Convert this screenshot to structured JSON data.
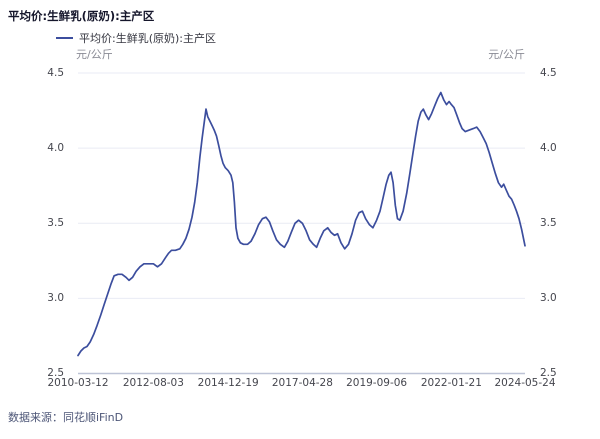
{
  "page": {
    "background": "#ffffff"
  },
  "chart_data": {
    "type": "line",
    "title": "平均价:生鲜乳(原奶):主产区",
    "legend": "平均价:生鲜乳(原奶):主产区",
    "legend_position": "top-left",
    "unit_left": "元/公斤",
    "unit_right": "元/公斤",
    "ylabel": "元/公斤",
    "xlabel": "",
    "source": "数据来源：同花顺iFinD",
    "grid": "horizontal-only",
    "ylim": [
      2.5,
      4.5
    ],
    "yticks": [
      2.5,
      3.0,
      3.5,
      4.0,
      4.5
    ],
    "ytick_labels": [
      "2.5",
      "3.0",
      "3.5",
      "4.0",
      "4.5"
    ],
    "xtick_labels": [
      "2010-03-12",
      "2012-08-03",
      "2014-12-19",
      "2017-04-28",
      "2019-09-06",
      "2022-01-21",
      "2024-05-24"
    ],
    "colors": {
      "line": "#3C4E9E",
      "grid": "#E9EBF4",
      "axis": "#BDC3D6",
      "title": "#15162B",
      "tick_label": "#45464E",
      "unit_label": "#8A8B95",
      "source": "#4D5677"
    },
    "series": [
      {
        "name": "平均价:生鲜乳(原奶):主产区",
        "points": [
          [
            "2010-03-12",
            2.62
          ],
          [
            "2010-04-15",
            2.65
          ],
          [
            "2010-05-20",
            2.67
          ],
          [
            "2010-06-25",
            2.68
          ],
          [
            "2010-08-01",
            2.71
          ],
          [
            "2010-09-10",
            2.76
          ],
          [
            "2010-10-20",
            2.82
          ],
          [
            "2010-12-01",
            2.89
          ],
          [
            "2011-01-10",
            2.96
          ],
          [
            "2011-02-20",
            3.03
          ],
          [
            "2011-04-01",
            3.1
          ],
          [
            "2011-05-05",
            3.15
          ],
          [
            "2011-06-20",
            3.16
          ],
          [
            "2011-08-05",
            3.16
          ],
          [
            "2011-09-20",
            3.14
          ],
          [
            "2011-10-25",
            3.12
          ],
          [
            "2011-12-05",
            3.14
          ],
          [
            "2012-01-15",
            3.18
          ],
          [
            "2012-03-01",
            3.21
          ],
          [
            "2012-04-15",
            3.23
          ],
          [
            "2012-06-10",
            3.23
          ],
          [
            "2012-08-03",
            3.23
          ],
          [
            "2012-09-20",
            3.21
          ],
          [
            "2012-11-05",
            3.23
          ],
          [
            "2012-12-20",
            3.27
          ],
          [
            "2013-01-25",
            3.3
          ],
          [
            "2013-03-01",
            3.32
          ],
          [
            "2013-04-15",
            3.32
          ],
          [
            "2013-06-05",
            3.33
          ],
          [
            "2013-07-10",
            3.36
          ],
          [
            "2013-08-15",
            3.4
          ],
          [
            "2013-09-20",
            3.46
          ],
          [
            "2013-10-25",
            3.54
          ],
          [
            "2013-11-25",
            3.64
          ],
          [
            "2013-12-25",
            3.77
          ],
          [
            "2014-01-25",
            3.94
          ],
          [
            "2014-02-20",
            4.07
          ],
          [
            "2014-03-15",
            4.17
          ],
          [
            "2014-04-05",
            4.26
          ],
          [
            "2014-04-25",
            4.21
          ],
          [
            "2014-05-20",
            4.18
          ],
          [
            "2014-06-15",
            4.15
          ],
          [
            "2014-07-10",
            4.12
          ],
          [
            "2014-08-05",
            4.08
          ],
          [
            "2014-08-30",
            4.02
          ],
          [
            "2014-09-25",
            3.95
          ],
          [
            "2014-10-20",
            3.9
          ],
          [
            "2014-11-15",
            3.87
          ],
          [
            "2014-12-19",
            3.85
          ],
          [
            "2015-01-20",
            3.82
          ],
          [
            "2015-02-10",
            3.77
          ],
          [
            "2015-03-01",
            3.64
          ],
          [
            "2015-03-20",
            3.47
          ],
          [
            "2015-04-10",
            3.4
          ],
          [
            "2015-05-10",
            3.37
          ],
          [
            "2015-06-15",
            3.36
          ],
          [
            "2015-08-01",
            3.36
          ],
          [
            "2015-09-10",
            3.38
          ],
          [
            "2015-10-25",
            3.43
          ],
          [
            "2015-12-05",
            3.49
          ],
          [
            "2016-01-20",
            3.53
          ],
          [
            "2016-03-01",
            3.54
          ],
          [
            "2016-04-10",
            3.51
          ],
          [
            "2016-05-20",
            3.45
          ],
          [
            "2016-07-01",
            3.39
          ],
          [
            "2016-08-15",
            3.36
          ],
          [
            "2016-10-01",
            3.34
          ],
          [
            "2016-11-10",
            3.38
          ],
          [
            "2016-12-20",
            3.44
          ],
          [
            "2017-02-01",
            3.5
          ],
          [
            "2017-03-15",
            3.52
          ],
          [
            "2017-04-28",
            3.5
          ],
          [
            "2017-06-10",
            3.45
          ],
          [
            "2017-07-20",
            3.39
          ],
          [
            "2017-09-01",
            3.36
          ],
          [
            "2017-10-10",
            3.34
          ],
          [
            "2017-11-20",
            3.4
          ],
          [
            "2018-01-01",
            3.45
          ],
          [
            "2018-02-15",
            3.47
          ],
          [
            "2018-03-25",
            3.44
          ],
          [
            "2018-05-05",
            3.42
          ],
          [
            "2018-06-10",
            3.43
          ],
          [
            "2018-07-20",
            3.37
          ],
          [
            "2018-09-01",
            3.33
          ],
          [
            "2018-10-15",
            3.36
          ],
          [
            "2018-11-25",
            3.43
          ],
          [
            "2019-01-05",
            3.52
          ],
          [
            "2019-02-15",
            3.57
          ],
          [
            "2019-03-25",
            3.58
          ],
          [
            "2019-05-01",
            3.53
          ],
          [
            "2019-06-15",
            3.49
          ],
          [
            "2019-07-25",
            3.47
          ],
          [
            "2019-09-06",
            3.52
          ],
          [
            "2019-10-15",
            3.58
          ],
          [
            "2019-11-20",
            3.67
          ],
          [
            "2019-12-25",
            3.76
          ],
          [
            "2020-01-25",
            3.82
          ],
          [
            "2020-02-20",
            3.84
          ],
          [
            "2020-03-15",
            3.77
          ],
          [
            "2020-04-10",
            3.62
          ],
          [
            "2020-05-05",
            3.53
          ],
          [
            "2020-06-01",
            3.52
          ],
          [
            "2020-07-10",
            3.58
          ],
          [
            "2020-08-20",
            3.7
          ],
          [
            "2020-09-25",
            3.83
          ],
          [
            "2020-10-30",
            3.96
          ],
          [
            "2020-12-01",
            4.08
          ],
          [
            "2021-01-01",
            4.18
          ],
          [
            "2021-02-01",
            4.24
          ],
          [
            "2021-03-01",
            4.26
          ],
          [
            "2021-04-01",
            4.22
          ],
          [
            "2021-05-01",
            4.19
          ],
          [
            "2021-06-05",
            4.23
          ],
          [
            "2021-07-10",
            4.28
          ],
          [
            "2021-08-15",
            4.33
          ],
          [
            "2021-09-20",
            4.37
          ],
          [
            "2021-10-25",
            4.32
          ],
          [
            "2021-11-25",
            4.29
          ],
          [
            "2021-12-25",
            4.31
          ],
          [
            "2022-01-21",
            4.29
          ],
          [
            "2022-02-20",
            4.27
          ],
          [
            "2022-03-25",
            4.22
          ],
          [
            "2022-04-25",
            4.17
          ],
          [
            "2022-05-25",
            4.13
          ],
          [
            "2022-07-01",
            4.11
          ],
          [
            "2022-08-15",
            4.12
          ],
          [
            "2022-10-01",
            4.13
          ],
          [
            "2022-11-10",
            4.14
          ],
          [
            "2022-12-20",
            4.11
          ],
          [
            "2023-01-25",
            4.07
          ],
          [
            "2023-03-01",
            4.03
          ],
          [
            "2023-04-05",
            3.97
          ],
          [
            "2023-05-10",
            3.9
          ],
          [
            "2023-06-15",
            3.83
          ],
          [
            "2023-07-20",
            3.77
          ],
          [
            "2023-08-25",
            3.74
          ],
          [
            "2023-09-20",
            3.76
          ],
          [
            "2023-10-20",
            3.72
          ],
          [
            "2023-11-20",
            3.68
          ],
          [
            "2023-12-20",
            3.66
          ],
          [
            "2024-01-20",
            3.62
          ],
          [
            "2024-02-15",
            3.58
          ],
          [
            "2024-03-15",
            3.53
          ],
          [
            "2024-04-15",
            3.46
          ],
          [
            "2024-05-24",
            3.35
          ]
        ]
      }
    ]
  }
}
